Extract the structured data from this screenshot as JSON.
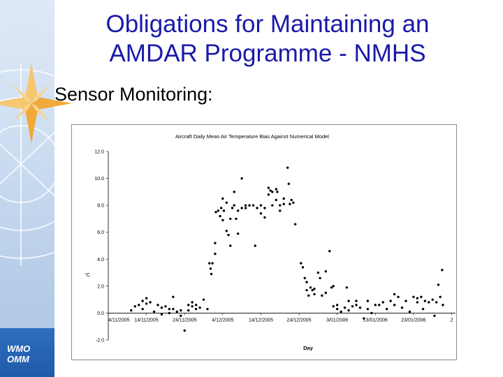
{
  "slide": {
    "title_line1": "Obligations for Maintaining an",
    "title_line2": "AMDAR Programme - NMHS",
    "subtitle": "Sensor Monitoring:",
    "logo_line1": "WMO",
    "logo_line2": "OMM"
  },
  "colors": {
    "title": "#1a1aa8",
    "sidebar": "#c9dbf0",
    "logo_bg": "#2766b6",
    "star": "#f2b84b",
    "points": "#000000"
  },
  "chart_data": {
    "type": "scatter",
    "title": "Aircraft Daily Mean Air Temperature Bias Against Numerical Model",
    "xlabel": "Day",
    "ylabel": "°C",
    "x_ticks": [
      "4/11/2005",
      "14/11/2005",
      "24/11/2005",
      "4/12/2005",
      "14/12/2005",
      "24/12/2005",
      "3/01/2006",
      "13/01/2006",
      "23/01/2006",
      "2"
    ],
    "y_ticks": [
      "12.0",
      "10.0",
      "8.0",
      "6.0",
      "4.0",
      "2.0",
      "0.0",
      "-2.0"
    ],
    "ylim": [
      -2,
      12
    ],
    "xlim": [
      0,
      91
    ],
    "grid": false,
    "x_unit": "days since 4/11/2005",
    "points": [
      [
        6,
        0.2
      ],
      [
        7,
        0.5
      ],
      [
        8,
        0.6
      ],
      [
        9,
        0.3
      ],
      [
        9,
        0.9
      ],
      [
        10,
        1.1
      ],
      [
        10,
        0.7
      ],
      [
        11,
        0.8
      ],
      [
        12,
        0.1
      ],
      [
        13,
        0.6
      ],
      [
        14,
        0.4
      ],
      [
        14,
        -0.1
      ],
      [
        15,
        0.5
      ],
      [
        16,
        0.3
      ],
      [
        16,
        0.0
      ],
      [
        17,
        1.2
      ],
      [
        17,
        0.3
      ],
      [
        18,
        0.1
      ],
      [
        19,
        0.2
      ],
      [
        19,
        -0.2
      ],
      [
        20,
        -1.3
      ],
      [
        21,
        0.6
      ],
      [
        21,
        0.2
      ],
      [
        22,
        0.8
      ],
      [
        22,
        0.5
      ],
      [
        23,
        0.6
      ],
      [
        23,
        0.3
      ],
      [
        24,
        0.4
      ],
      [
        25,
        1.0
      ],
      [
        26,
        0.3
      ],
      [
        26.5,
        3.7
      ],
      [
        26.8,
        3.3
      ],
      [
        27,
        2.9
      ],
      [
        27.3,
        3.7
      ],
      [
        28,
        5.2
      ],
      [
        28,
        4.4
      ],
      [
        28.2,
        7.5
      ],
      [
        28.8,
        7.6
      ],
      [
        29.3,
        7.2
      ],
      [
        29.6,
        7.8
      ],
      [
        30,
        8.5
      ],
      [
        30,
        6.9
      ],
      [
        30.3,
        7.6
      ],
      [
        31,
        8.2
      ],
      [
        31,
        6.1
      ],
      [
        31.5,
        5.8
      ],
      [
        32,
        7.0
      ],
      [
        32,
        5.0
      ],
      [
        32.5,
        7.8
      ],
      [
        33,
        9.0
      ],
      [
        33,
        8.0
      ],
      [
        33.5,
        7.0
      ],
      [
        34,
        7.6
      ],
      [
        34,
        5.9
      ],
      [
        35,
        10.0
      ],
      [
        35,
        7.8
      ],
      [
        36,
        8.0
      ],
      [
        36,
        7.8
      ],
      [
        37,
        8.0
      ],
      [
        37,
        8.0
      ],
      [
        38,
        8.0
      ],
      [
        38.5,
        5.0
      ],
      [
        39,
        7.8
      ],
      [
        40,
        8.0
      ],
      [
        40,
        7.4
      ],
      [
        41,
        7.8
      ],
      [
        41,
        7.1
      ],
      [
        42,
        9.3
      ],
      [
        42,
        8.8
      ],
      [
        42.5,
        9.1
      ],
      [
        43,
        9.0
      ],
      [
        43,
        8.0
      ],
      [
        44,
        9.2
      ],
      [
        44,
        8.4
      ],
      [
        44.3,
        9.0
      ],
      [
        45,
        8.0
      ],
      [
        45,
        7.6
      ],
      [
        46,
        8.1
      ],
      [
        46,
        8.5
      ],
      [
        47,
        10.8
      ],
      [
        47.3,
        9.6
      ],
      [
        47.6,
        8.1
      ],
      [
        48,
        8.4
      ],
      [
        48.5,
        8.2
      ],
      [
        49,
        6.6
      ],
      [
        50.5,
        3.7
      ],
      [
        51,
        3.4
      ],
      [
        51.5,
        2.6
      ],
      [
        52,
        1.7
      ],
      [
        52.5,
        1.3
      ],
      [
        52,
        2.3
      ],
      [
        53,
        1.9
      ],
      [
        53.5,
        1.7
      ],
      [
        54,
        1.8
      ],
      [
        54,
        1.4
      ],
      [
        55,
        3.0
      ],
      [
        55.5,
        2.6
      ],
      [
        56,
        1.3
      ],
      [
        57,
        1.5
      ],
      [
        57,
        3.1
      ],
      [
        58,
        4.6
      ],
      [
        58.5,
        1.9
      ],
      [
        59,
        2.0
      ],
      [
        59,
        0.5
      ],
      [
        60,
        0.6
      ],
      [
        60,
        0.3
      ],
      [
        61,
        0.1
      ],
      [
        62,
        0.4
      ],
      [
        62.5,
        1.9
      ],
      [
        63,
        0.2
      ],
      [
        63,
        0.9
      ],
      [
        64,
        0.5
      ],
      [
        65,
        0.6
      ],
      [
        65,
        0.9
      ],
      [
        66,
        0.4
      ],
      [
        67,
        -0.4
      ],
      [
        68,
        0.9
      ],
      [
        68,
        0.3
      ],
      [
        69,
        0.0
      ],
      [
        70,
        0.6
      ],
      [
        71,
        0.6
      ],
      [
        72,
        0.8
      ],
      [
        73,
        0.3
      ],
      [
        74,
        0.9
      ],
      [
        75,
        0.6
      ],
      [
        75,
        1.4
      ],
      [
        76,
        1.2
      ],
      [
        77,
        0.4
      ],
      [
        78,
        0.9
      ],
      [
        79,
        0.1
      ],
      [
        80,
        1.2
      ],
      [
        81,
        1.1
      ],
      [
        81,
        0.8
      ],
      [
        82,
        1.2
      ],
      [
        82.5,
        0.3
      ],
      [
        83,
        0.9
      ],
      [
        84,
        0.8
      ],
      [
        85,
        1.0
      ],
      [
        85.5,
        -0.2
      ],
      [
        86,
        0.8
      ],
      [
        86.5,
        2.1
      ],
      [
        87,
        1.2
      ],
      [
        87.5,
        3.2
      ],
      [
        87.7,
        0.6
      ]
    ]
  }
}
